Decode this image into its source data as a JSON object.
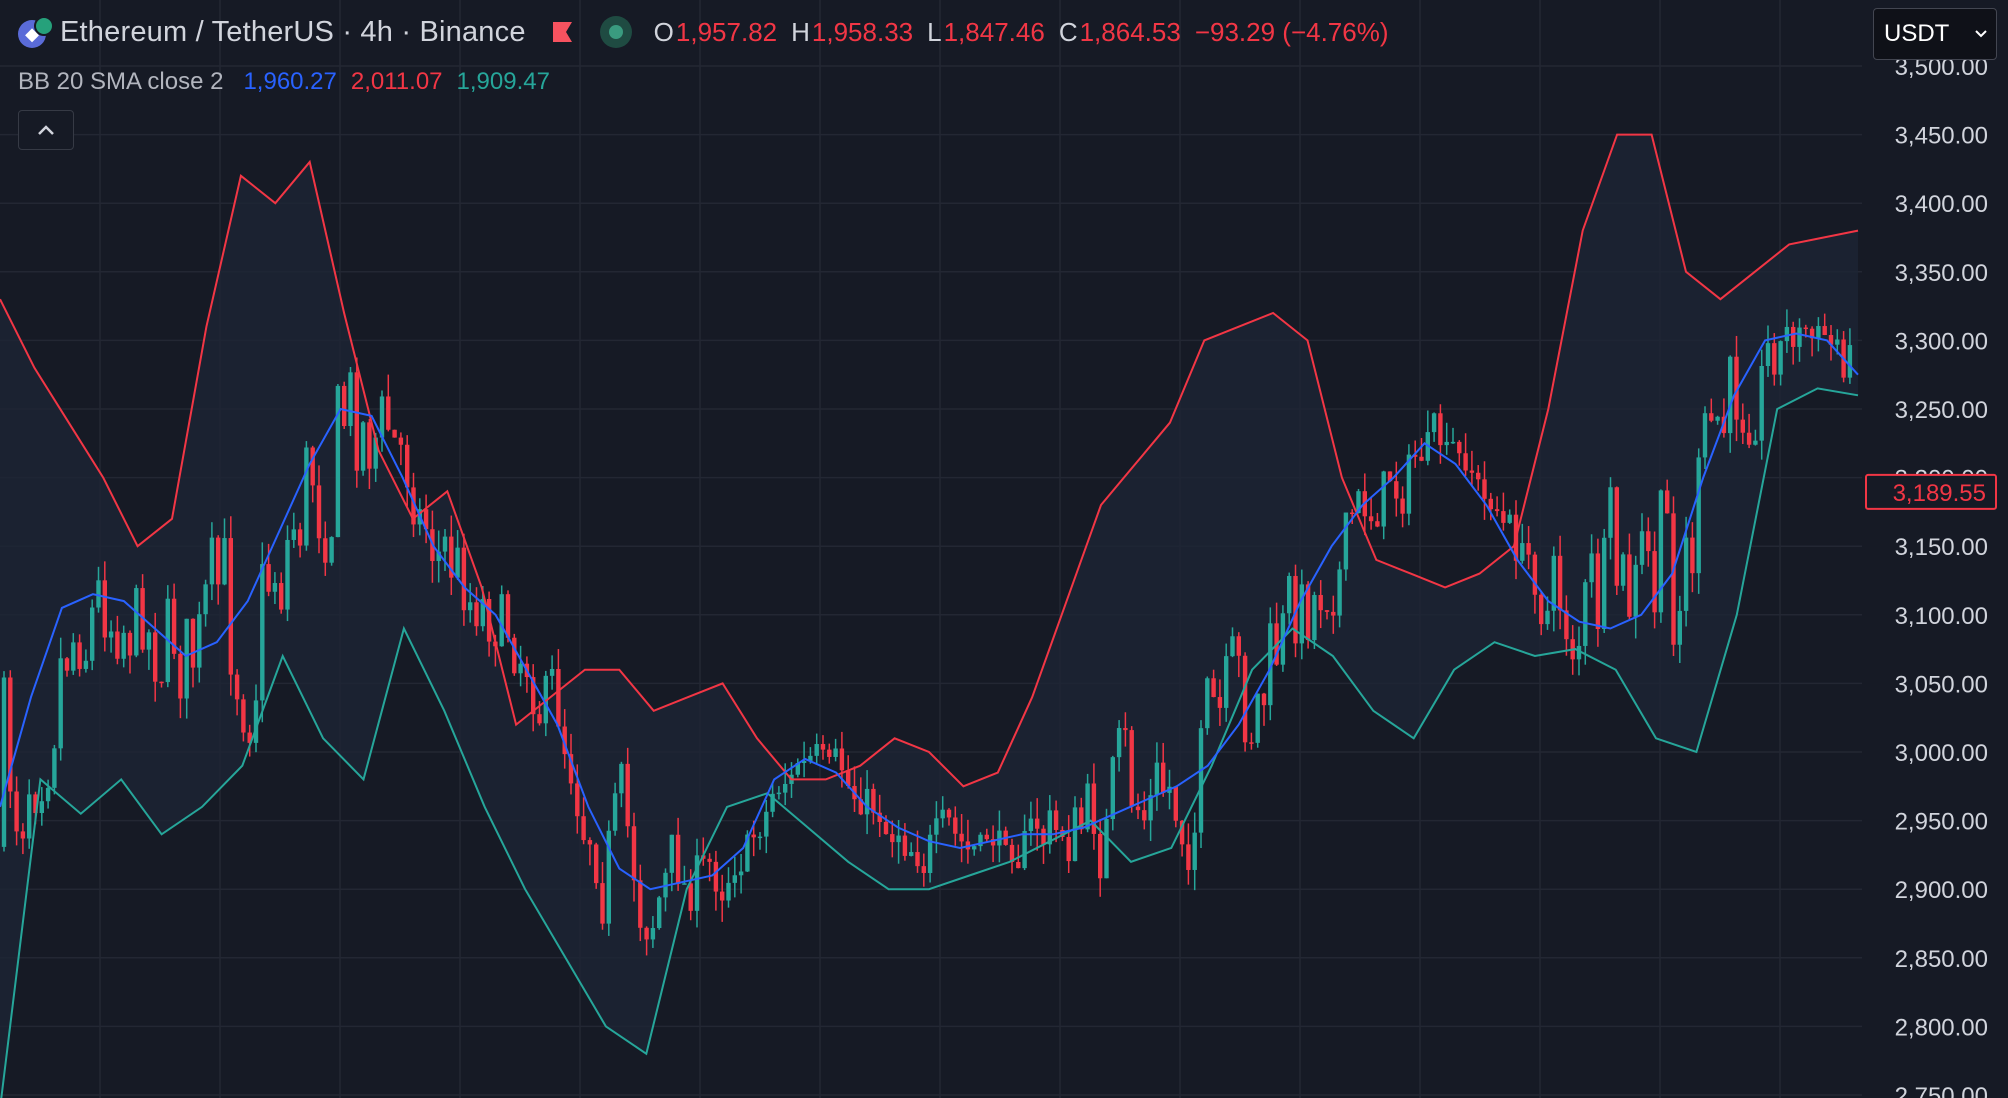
{
  "header": {
    "title": "Ethereum / TetherUS · 4h · Binance",
    "ohlc": [
      {
        "key": "O",
        "value": "1,957.82"
      },
      {
        "key": "H",
        "value": "1,958.33"
      },
      {
        "key": "L",
        "value": "1,847.46"
      },
      {
        "key": "C",
        "value": "1,864.53"
      }
    ],
    "change": "−93.29 (−4.76%)"
  },
  "indicator": {
    "name": "BB 20 SMA close 2",
    "basis": "1,960.27",
    "upper": "2,011.07",
    "lower": "1,909.47"
  },
  "currency_select": {
    "value": "USDT"
  },
  "price_label": "3,189.55",
  "colors": {
    "background": "#161a25",
    "up": "#26a69a",
    "down": "#f23645",
    "basis": "#2962ff",
    "upper": "#f23645",
    "lower": "#26a69a",
    "grid": "#232733"
  },
  "icons": {
    "symbol": "ethereum-tether-icon",
    "flag": "flag-icon",
    "status": "market-status-icon",
    "collapse": "chevron-up-icon",
    "dropdown": "chevron-down-icon"
  },
  "chart_data": {
    "type": "candlestick",
    "y_ticks": [
      "2,750.00",
      "2,800.00",
      "2,850.00",
      "2,900.00",
      "2,950.00",
      "3,000.00",
      "3,050.00",
      "3,100.00",
      "3,150.00",
      "3,200.00",
      "3,250.00",
      "3,300.00",
      "3,350.00",
      "3,400.00",
      "3,450.00",
      "3,500.00"
    ],
    "ylim": [
      2750,
      3500
    ],
    "grid": true,
    "last_price": 3189.55,
    "series": [
      {
        "name": "BB basis",
        "values": [
          2960,
          3040,
          3105,
          3115,
          3110,
          3090,
          3070,
          3080,
          3110,
          3160,
          3210,
          3250,
          3245,
          3200,
          3150,
          3120,
          3100,
          3060,
          3020,
          2960,
          2915,
          2900,
          2905,
          2910,
          2930,
          2980,
          2995,
          2985,
          2960,
          2945,
          2935,
          2930,
          2935,
          2940,
          2940,
          2945,
          2955,
          2965,
          2975,
          2990,
          3020,
          3060,
          3110,
          3150,
          3180,
          3200,
          3225,
          3210,
          3180,
          3140,
          3110,
          3095,
          3090,
          3100,
          3130,
          3200,
          3260,
          3300,
          3305,
          3300,
          3275
        ]
      },
      {
        "name": "BB upper",
        "values": [
          3330,
          3280,
          3240,
          3200,
          3150,
          3170,
          3310,
          3420,
          3400,
          3430,
          3320,
          3220,
          3170,
          3190,
          3120,
          3020,
          3040,
          3060,
          3060,
          3030,
          3040,
          3050,
          3010,
          2980,
          2980,
          2990,
          3010,
          3000,
          2975,
          2985,
          3040,
          3110,
          3180,
          3210,
          3240,
          3300,
          3310,
          3320,
          3300,
          3200,
          3140,
          3130,
          3120,
          3130,
          3150,
          3250,
          3380,
          3450,
          3450,
          3350,
          3330,
          3350,
          3370,
          3375,
          3380
        ]
      },
      {
        "name": "BB lower",
        "values": [
          2740,
          2980,
          2955,
          2980,
          2940,
          2960,
          2990,
          3070,
          3010,
          2980,
          3090,
          3030,
          2960,
          2900,
          2850,
          2800,
          2780,
          2900,
          2960,
          2970,
          2945,
          2920,
          2900,
          2900,
          2910,
          2920,
          2935,
          2950,
          2920,
          2930,
          2990,
          3060,
          3090,
          3070,
          3030,
          3010,
          3060,
          3080,
          3070,
          3075,
          3060,
          3010,
          3000,
          3100,
          3250,
          3265,
          3260
        ]
      }
    ]
  }
}
